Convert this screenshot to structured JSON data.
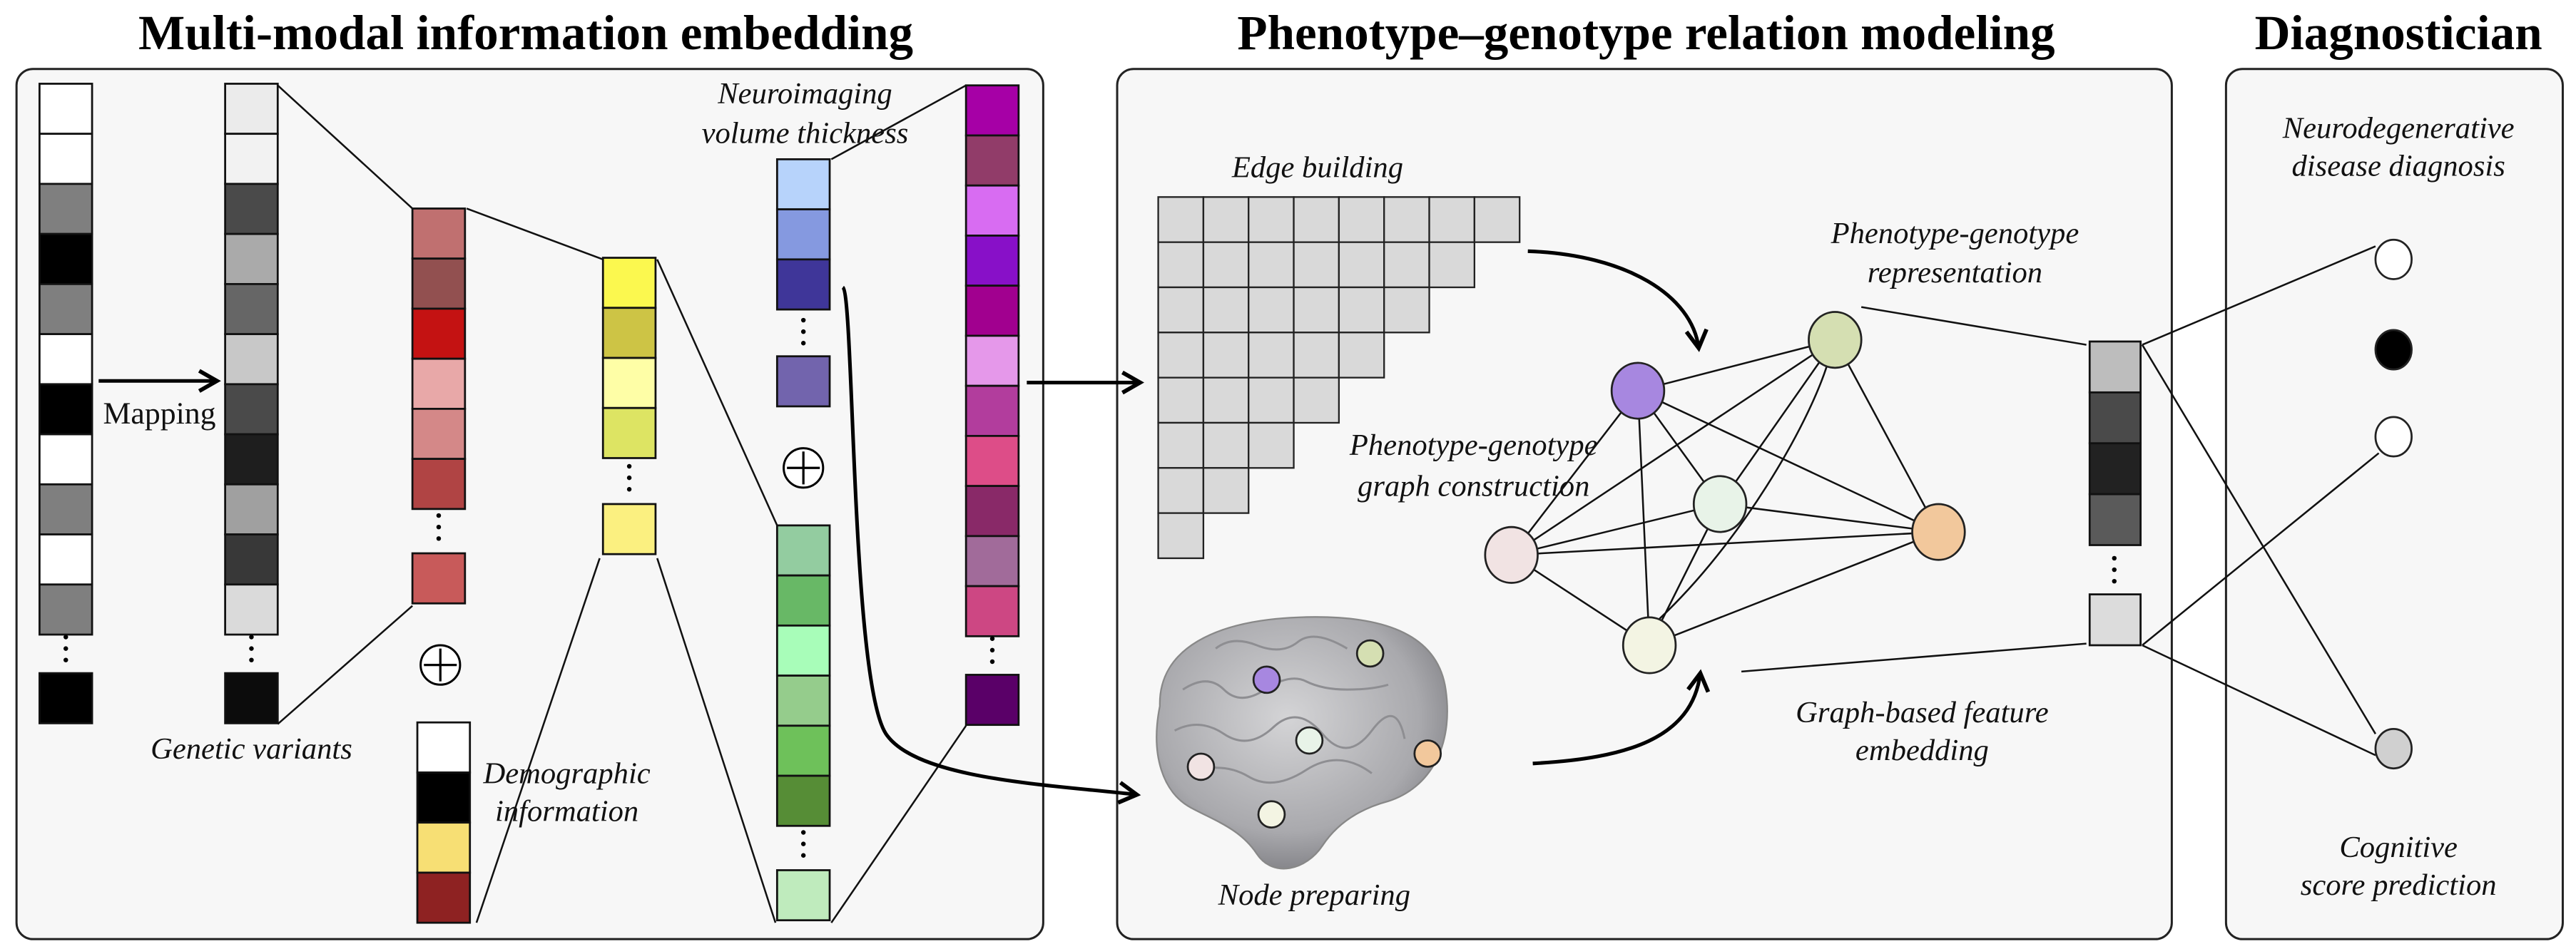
{
  "titles": {
    "embedding": "Multi-modal information embedding",
    "relation": "Phenotype–genotype relation modeling",
    "diagnostician": "Diagnostician"
  },
  "embedding": {
    "mapping_label": "Mapping",
    "genetic_label": "Genetic variants",
    "demographic_label": [
      "Demographic",
      "information"
    ],
    "neuro_label": [
      "Neuroimaging",
      "volume thickness"
    ],
    "raw_snp_colors": [
      "#ffffff",
      "#ffffff",
      "#7f7f7f",
      "#000000",
      "#7f7f7f",
      "#ffffff",
      "#000000",
      "#ffffff",
      "#7f7f7f",
      "#ffffff",
      "#7f7f7f"
    ],
    "raw_snp_last": "#000000",
    "mapped_colors": [
      "#ebebeb",
      "#f2f2f2",
      "#4a4a4a",
      "#aaaaaa",
      "#666666",
      "#c8c8c8",
      "#4a4a4a",
      "#1e1e1e",
      "#a0a0a0",
      "#383838",
      "#dadada"
    ],
    "mapped_last": "#0c0c0c",
    "genetic_colors": [
      "#c07070",
      "#925050",
      "#c41212",
      "#e8a8a8",
      "#d48888",
      "#b04444"
    ],
    "genetic_last": "#c85a5a",
    "demographic_colors": [
      "#ffffff",
      "#000000",
      "#f7df74",
      "#8e2222"
    ],
    "fused1_colors": [
      "#fbf84f",
      "#cdc445",
      "#fefea6",
      "#dde463"
    ],
    "fused1_last": "#fbf080",
    "volume_colors": [
      "#b7d3fb",
      "#8599e0",
      "#3f3699"
    ],
    "volume_last": "#7264ad",
    "thickness_colors": [
      "#93cca0",
      "#68b866",
      "#a8fdb9",
      "#95cc8c",
      "#6ec15a",
      "#568d36"
    ],
    "thickness_last": "#bfebbd",
    "final_colors": [
      "#a600a6",
      "#913c69",
      "#d86cf2",
      "#8810c8",
      "#a1008f",
      "#e598ea",
      "#b23d9d",
      "#dd4d88",
      "#892968",
      "#a16b9a",
      "#cd4783"
    ],
    "final_last": "#5a0068",
    "concat_icon": "circled-plus"
  },
  "relation": {
    "edge_label": "Edge building",
    "graph_label": [
      "Phenotype-genotype",
      "graph construction"
    ],
    "representation_label": [
      "Phenotype-genotype",
      "representation"
    ],
    "feature_label": [
      "Graph-based feature",
      "embedding"
    ],
    "node_label": "Node preparing",
    "node_colors": [
      "#a787e0",
      "#d5dfb2",
      "#e8f3e8",
      "#f2c89c",
      "#f1e3e3",
      "#f3f4e3"
    ],
    "rep_colors": [
      "#bdbdbd",
      "#4a4a4a",
      "#222222",
      "#5a5a5a"
    ],
    "rep_last": "#dcdcdc"
  },
  "diagnostician": {
    "diagnosis_label": [
      "Neurodegenerative",
      "disease diagnosis"
    ],
    "cognitive_label": [
      "Cognitive",
      "score prediction"
    ],
    "output_colors": [
      "#ffffff",
      "#000000",
      "#ffffff",
      "#d0d0d0"
    ]
  }
}
